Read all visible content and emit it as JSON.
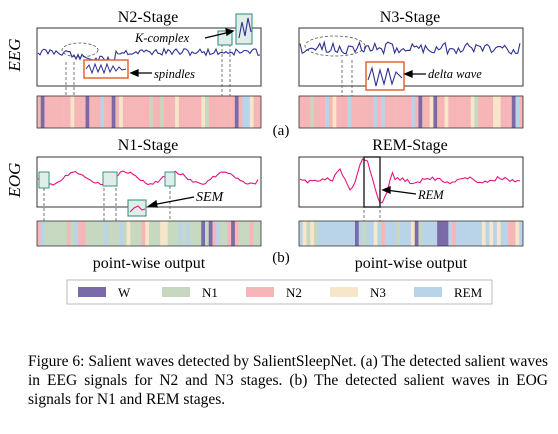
{
  "figure": {
    "row_labels": {
      "eeg": "EEG",
      "eog": "EOG"
    },
    "panels": {
      "n2": {
        "title": "N2-Stage",
        "labels": {
          "kcomplex": "K-complex",
          "spindles": "spindles"
        }
      },
      "n3": {
        "title": "N3-Stage",
        "labels": {
          "delta": "delta wave"
        }
      },
      "n1": {
        "title": "N1-Stage",
        "labels": {
          "sem": "SEM"
        }
      },
      "rem": {
        "title": "REM-Stage",
        "labels": {
          "rem": "REM"
        }
      }
    },
    "subfigure_labels": {
      "a": "(a)",
      "b": "(b)"
    },
    "output_labels": {
      "left": "point-wise output",
      "right": "point-wise output"
    },
    "legend": [
      {
        "label": "W",
        "color": "#7b6aa8"
      },
      {
        "label": "N1",
        "color": "#c6d9c0"
      },
      {
        "label": "N2",
        "color": "#f6b6b8"
      },
      {
        "label": "N3",
        "color": "#f7e6c9"
      },
      {
        "label": "REM",
        "color": "#b9d4e8"
      }
    ]
  },
  "caption": {
    "text": "Figure 6: Salient waves detected by SalientSleepNet. (a) The detected salient waves in EEG signals for N2 and N3 stages. (b) The detected salient waves in EOG signals for N1 and REM stages."
  }
}
